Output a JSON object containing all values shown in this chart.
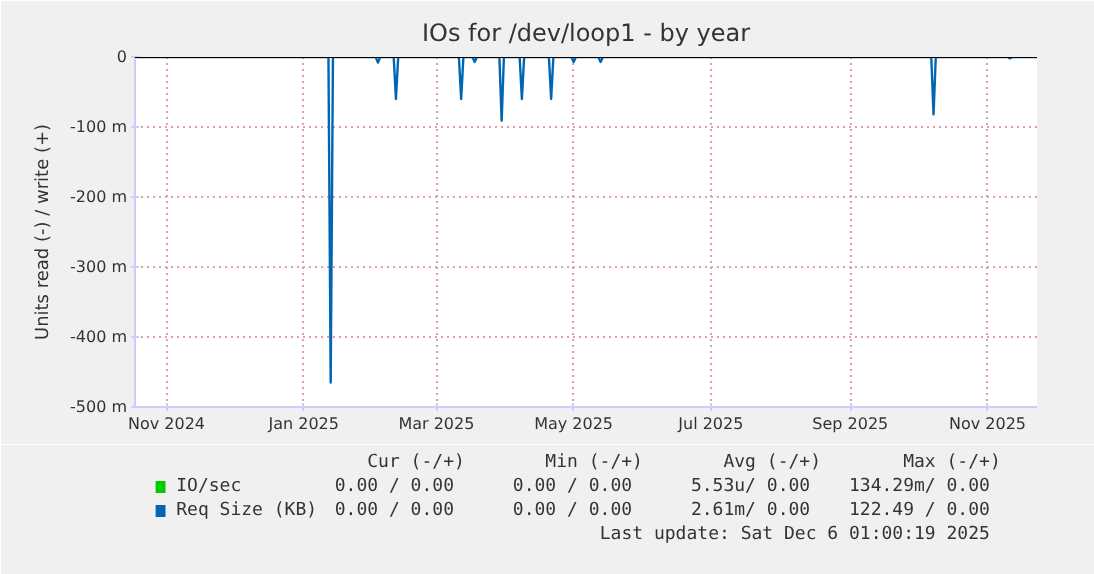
{
  "chart_data": {
    "type": "line",
    "title": "IOs for /dev/loop1 - by year",
    "ylabel": "Units read (-) / write (+)",
    "xlim": [
      "2024-10-18",
      "2025-11-23"
    ],
    "ylim": [
      -500,
      0
    ],
    "xticks": [
      {
        "value": "2024-11-01",
        "label": "Nov 2024"
      },
      {
        "value": "2025-01-01",
        "label": "Jan 2025"
      },
      {
        "value": "2025-03-01",
        "label": "Mar 2025"
      },
      {
        "value": "2025-05-01",
        "label": "May 2025"
      },
      {
        "value": "2025-07-01",
        "label": "Jul 2025"
      },
      {
        "value": "2025-09-01",
        "label": "Sep 2025"
      },
      {
        "value": "2025-11-01",
        "label": "Nov 2025"
      }
    ],
    "yticks": [
      0,
      {
        "value": -100,
        "label": "-100 m"
      },
      {
        "value": -200,
        "label": "-200 m"
      },
      {
        "value": -300,
        "label": "-300 m"
      },
      {
        "value": -400,
        "label": "-400 m"
      },
      {
        "value": -500,
        "label": "-500 m"
      }
    ],
    "grid": true,
    "legend": "bottom",
    "series": [
      {
        "name": "IO/sec",
        "color": "#00cc00"
      },
      {
        "name": "Req Size (KB)",
        "color": "#0066b3",
        "x": [
          "2024-10-18",
          "2025-01-12",
          "2025-01-13",
          "2025-01-14",
          "2025-02-02",
          "2025-02-03",
          "2025-02-04",
          "2025-02-10",
          "2025-02-11",
          "2025-02-12",
          "2025-03-11",
          "2025-03-12",
          "2025-03-13",
          "2025-03-17",
          "2025-03-18",
          "2025-03-19",
          "2025-03-29",
          "2025-03-30",
          "2025-03-31",
          "2025-04-07",
          "2025-04-08",
          "2025-04-09",
          "2025-04-20",
          "2025-04-21",
          "2025-04-22",
          "2025-04-30",
          "2025-05-01",
          "2025-05-02",
          "2025-05-12",
          "2025-05-13",
          "2025-05-14",
          "2025-10-07",
          "2025-10-08",
          "2025-10-09",
          "2025-11-10",
          "2025-11-11",
          "2025-11-12",
          "2025-11-23"
        ],
        "values": [
          0,
          0,
          -465,
          0,
          0,
          -8,
          0,
          0,
          -60,
          0,
          0,
          -60,
          0,
          0,
          -7,
          0,
          0,
          -91,
          0,
          0,
          -60,
          0,
          0,
          -60,
          0,
          0,
          -7,
          0,
          0,
          -7,
          0,
          0,
          -82,
          0,
          0,
          -2,
          0,
          0
        ]
      }
    ],
    "annotations": [
      "Cur (-/+)",
      "Min (-/+)",
      "Avg (-/+)",
      "Max (-/+)",
      "0.00 /  0.00",
      "0.00 /  0.00",
      "5.53u/  0.00",
      "134.29m/  0.00",
      "0.00 /  0.00",
      "0.00 /  0.00",
      "2.61m/  0.00",
      "122.49 /  0.00",
      "Last update: Sat Dec  6 01:00:19 2025"
    ]
  }
}
